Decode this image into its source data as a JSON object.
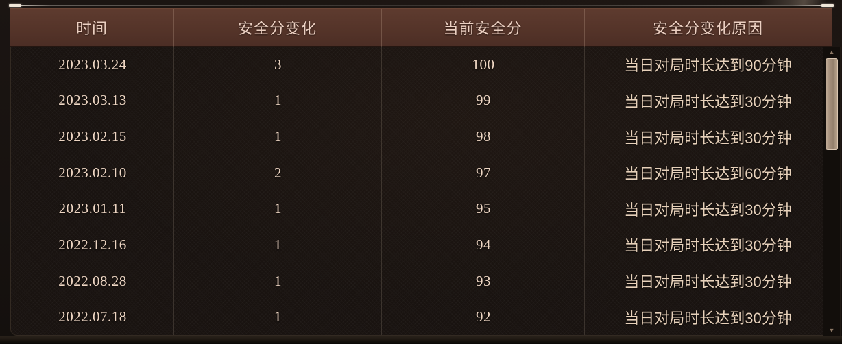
{
  "table": {
    "columns": [
      {
        "key": "time",
        "label": "时间"
      },
      {
        "key": "change",
        "label": "安全分变化"
      },
      {
        "key": "current",
        "label": "当前安全分"
      },
      {
        "key": "reason",
        "label": "安全分变化原因"
      }
    ],
    "rows": [
      {
        "time": "2023.03.24",
        "change": "3",
        "current": "100",
        "reason": "当日对局时长达到90分钟"
      },
      {
        "time": "2023.03.13",
        "change": "1",
        "current": "99",
        "reason": "当日对局时长达到30分钟"
      },
      {
        "time": "2023.02.15",
        "change": "1",
        "current": "98",
        "reason": "当日对局时长达到30分钟"
      },
      {
        "time": "2023.02.10",
        "change": "2",
        "current": "97",
        "reason": "当日对局时长达到60分钟"
      },
      {
        "time": "2023.01.11",
        "change": "1",
        "current": "95",
        "reason": "当日对局时长达到30分钟"
      },
      {
        "time": "2022.12.16",
        "change": "1",
        "current": "94",
        "reason": "当日对局时长达到30分钟"
      },
      {
        "time": "2022.08.28",
        "change": "1",
        "current": "93",
        "reason": "当日对局时长达到30分钟"
      },
      {
        "time": "2022.07.18",
        "change": "1",
        "current": "92",
        "reason": "当日对局时长达到30分钟"
      }
    ]
  },
  "scrollbar": {
    "up_icon": "▲",
    "down_icon": "▼"
  },
  "colors": {
    "header_bg_top": "#5e3b2f",
    "header_bg_bottom": "#4c2e25",
    "header_text": "#ecd0c2",
    "body_bg": "#191310",
    "body_text": "#e9d3bd",
    "thumb": "#a8937e",
    "thumb_border": "#d9c6b1",
    "arrow": "#8d7966"
  }
}
